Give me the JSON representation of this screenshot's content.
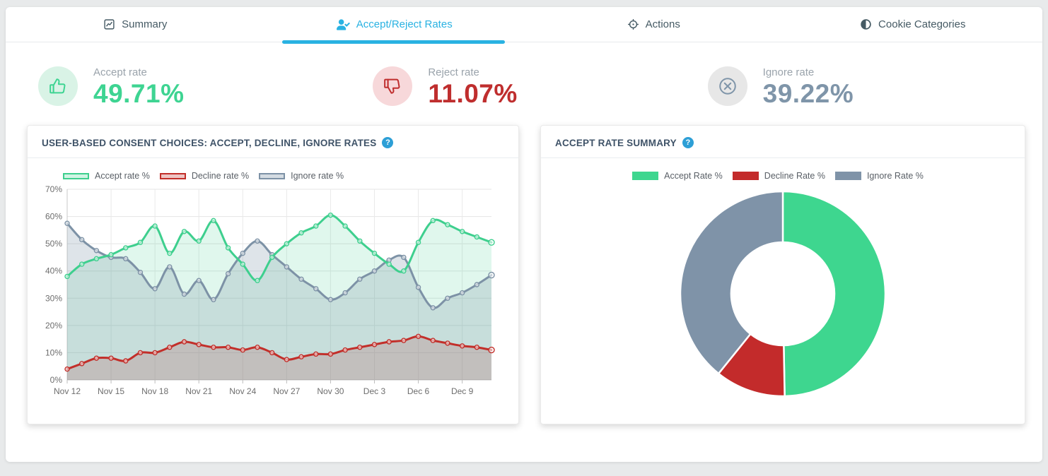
{
  "tabs": [
    {
      "label": "Summary",
      "icon": "chart-line-icon",
      "active": false
    },
    {
      "label": "Accept/Reject Rates",
      "icon": "user-check-icon",
      "active": true
    },
    {
      "label": "Actions",
      "icon": "crosshairs-icon",
      "active": false
    },
    {
      "label": "Cookie Categories",
      "icon": "adjust-icon",
      "active": false
    }
  ],
  "colors": {
    "active_tab": "#29b2e2",
    "accept": "#3ecf8e",
    "decline": "#c22f2a",
    "ignore": "#7d92a6",
    "donut_accept": "#3ed68f",
    "donut_decline": "#c32b2b",
    "donut_ignore": "#7f93a8",
    "help_icon": "#2d9fd6"
  },
  "kpis": [
    {
      "label": "Accept rate",
      "value": "49.71%",
      "color": "#3ed492",
      "tint": "#d9f3e6",
      "icon": "thumbs-up-icon"
    },
    {
      "label": "Reject rate",
      "value": "11.07%",
      "color": "#bf2e2e",
      "tint": "#f7d8da",
      "icon": "thumbs-down-icon"
    },
    {
      "label": "Ignore rate",
      "value": "39.22%",
      "color": "#7f95a9",
      "tint": "#e7e7e7",
      "icon": "circle-x-icon"
    }
  ],
  "chart_data": [
    {
      "type": "area",
      "title": "USER-BASED CONSENT CHOICES: ACCEPT, DECLINE, IGNORE RATES",
      "x": [
        "Nov 12",
        "Nov 13",
        "Nov 14",
        "Nov 15",
        "Nov 16",
        "Nov 17",
        "Nov 18",
        "Nov 19",
        "Nov 20",
        "Nov 21",
        "Nov 22",
        "Nov 23",
        "Nov 24",
        "Nov 25",
        "Nov 26",
        "Nov 27",
        "Nov 28",
        "Nov 29",
        "Nov 30",
        "Dec 1",
        "Dec 2",
        "Dec 3",
        "Dec 4",
        "Dec 5",
        "Dec 6",
        "Dec 7",
        "Dec 8",
        "Dec 9",
        "Dec 10",
        "Dec 11"
      ],
      "x_tick_labels": [
        "Nov 12",
        "Nov 15",
        "Nov 18",
        "Nov 21",
        "Nov 24",
        "Nov 27",
        "Nov 30",
        "Dec 3",
        "Dec 6",
        "Dec 9"
      ],
      "ylim": [
        0,
        70
      ],
      "y_tick_step": 10,
      "grid": true,
      "legend_position": "top",
      "series": [
        {
          "name": "Accept rate %",
          "color": "#3ecf8e",
          "fill_opacity": 0.16,
          "values": [
            38,
            42.5,
            44.5,
            46,
            48.5,
            50.5,
            56.5,
            46.5,
            54.5,
            51,
            58.5,
            48.5,
            42.5,
            36.5,
            45,
            50,
            54,
            56.5,
            60.5,
            56.5,
            51,
            46.5,
            42.5,
            40,
            50.5,
            58.5,
            57,
            54.5,
            52.5,
            50.5
          ]
        },
        {
          "name": "Decline rate %",
          "color": "#c22f2a",
          "fill_opacity": 0.2,
          "values": [
            4,
            6,
            8,
            8,
            7,
            10,
            10,
            12,
            14,
            13,
            12,
            12,
            11,
            12,
            10,
            7.5,
            8.5,
            9.5,
            9.5,
            11,
            12,
            13,
            14,
            14.5,
            16,
            14.5,
            13.5,
            12.5,
            12,
            11
          ]
        },
        {
          "name": "Ignore rate %",
          "color": "#7d92a6",
          "fill_opacity": 0.25,
          "values": [
            57.5,
            51.5,
            47.5,
            45,
            44.5,
            39.5,
            33.5,
            41.5,
            31.5,
            36.5,
            29.5,
            39,
            46.5,
            51,
            46,
            41.5,
            37,
            33.5,
            29.5,
            32,
            37,
            40,
            44,
            45,
            34,
            26.5,
            30,
            32,
            35,
            38.5
          ]
        }
      ]
    },
    {
      "type": "pie",
      "donut": true,
      "title": "ACCEPT RATE SUMMARY",
      "labels": [
        "Accept Rate %",
        "Decline Rate %",
        "Ignore Rate %"
      ],
      "values": [
        49.71,
        11.07,
        39.22
      ],
      "colors": [
        "#3ed68f",
        "#c32b2b",
        "#7f93a8"
      ],
      "legend_position": "top"
    }
  ],
  "panels": {
    "line_chart_title": "USER-BASED CONSENT CHOICES: ACCEPT, DECLINE, IGNORE RATES",
    "donut_chart_title": "ACCEPT RATE SUMMARY",
    "help_glyph": "?"
  }
}
